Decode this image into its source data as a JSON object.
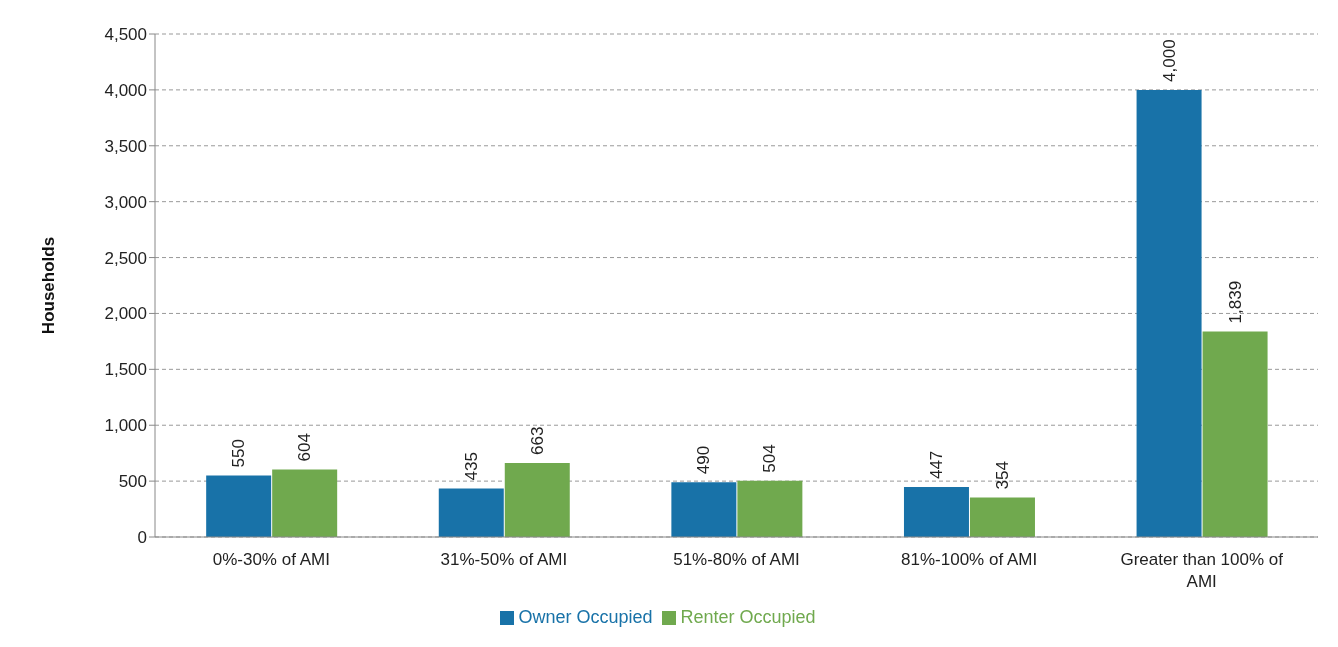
{
  "chart_data": {
    "type": "bar",
    "categories": [
      "0%-30% of AMI",
      "31%-50% of AMI",
      "51%-80% of AMI",
      "81%-100% of AMI",
      "Greater than 100% of AMI"
    ],
    "series": [
      {
        "name": "Owner Occupied",
        "color": "#1872a8",
        "values": [
          550,
          435,
          490,
          447,
          4000
        ],
        "value_labels": [
          "550",
          "435",
          "490",
          "447",
          "4,000"
        ]
      },
      {
        "name": "Renter Occupied",
        "color": "#70a94e",
        "values": [
          604,
          663,
          504,
          354,
          1839
        ],
        "value_labels": [
          "604",
          "663",
          "504",
          "354",
          "1,839"
        ]
      }
    ],
    "ylabel": "Households",
    "ylim": [
      0,
      4500
    ],
    "yticks": [
      0,
      {
        "value": 500,
        "label": "500"
      },
      {
        "value": 1000,
        "label": "1,000"
      },
      {
        "value": 1500,
        "label": "1,500"
      },
      {
        "value": 2000,
        "label": "2,000"
      },
      {
        "value": 2500,
        "label": "2,500"
      },
      {
        "value": 3000,
        "label": "3,000"
      },
      {
        "value": 3500,
        "label": "3,500"
      },
      {
        "value": 4000,
        "label": "4,000"
      },
      {
        "value": 4500,
        "label": "4,500"
      }
    ],
    "grid": "y",
    "legend": "bottom"
  }
}
